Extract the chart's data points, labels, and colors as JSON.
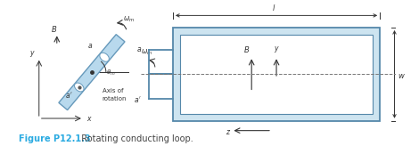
{
  "fig_width": 4.7,
  "fig_height": 1.64,
  "dpi": 100,
  "bg_color": "#ffffff",
  "caption_bold": "Figure P12.1.3",
  "caption_normal": "  Rotating conducting loop.",
  "caption_color_bold": "#29aae1",
  "caption_color_normal": "#444444",
  "caption_fontsize": 7.0,
  "coil_fill": "#b8d9ed",
  "coil_edge": "#6699bb",
  "rect_fill": "#cde4f0",
  "rect_edge": "#5588aa",
  "lc": "#333333"
}
